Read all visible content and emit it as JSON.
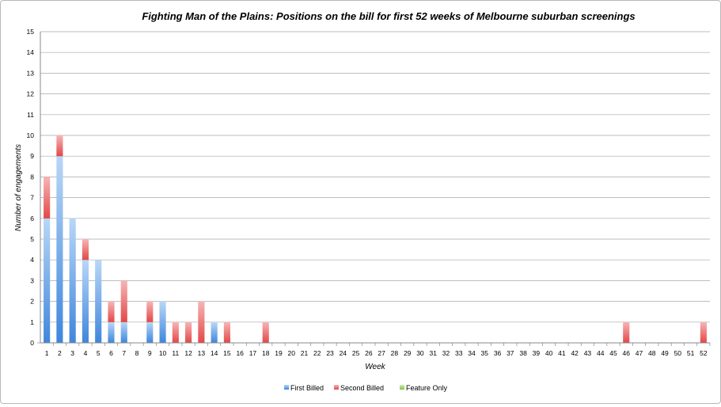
{
  "chart_data": {
    "type": "bar",
    "stacked": true,
    "title": "Fighting Man of the Plains: Positions on the bill for first 52 weeks of Melbourne suburban screenings",
    "xlabel": "Week",
    "ylabel": "Number of engagements",
    "ylim": [
      0,
      15
    ],
    "yticks": [
      0,
      1,
      2,
      3,
      4,
      5,
      6,
      7,
      8,
      9,
      10,
      11,
      12,
      13,
      14,
      15
    ],
    "grid": true,
    "legend_position": "bottom",
    "categories": [
      "1",
      "2",
      "3",
      "4",
      "5",
      "6",
      "7",
      "8",
      "9",
      "10",
      "11",
      "12",
      "13",
      "14",
      "15",
      "16",
      "17",
      "18",
      "19",
      "20",
      "21",
      "22",
      "23",
      "24",
      "25",
      "26",
      "27",
      "28",
      "29",
      "30",
      "31",
      "32",
      "33",
      "34",
      "35",
      "36",
      "37",
      "38",
      "39",
      "40",
      "41",
      "42",
      "43",
      "44",
      "45",
      "46",
      "47",
      "48",
      "49",
      "50",
      "51",
      "52"
    ],
    "series": [
      {
        "name": "First Billed",
        "color": "#4a90e2",
        "values": [
          6,
          9,
          6,
          4,
          4,
          1,
          1,
          0,
          1,
          2,
          0,
          0,
          0,
          1,
          0,
          0,
          0,
          0,
          0,
          0,
          0,
          0,
          0,
          0,
          0,
          0,
          0,
          0,
          0,
          0,
          0,
          0,
          0,
          0,
          0,
          0,
          0,
          0,
          0,
          0,
          0,
          0,
          0,
          0,
          0,
          0,
          0,
          0,
          0,
          0,
          0,
          0
        ]
      },
      {
        "name": "Second Billed",
        "color": "#e85a5a",
        "values": [
          2,
          1,
          0,
          1,
          0,
          1,
          2,
          0,
          1,
          0,
          1,
          1,
          2,
          0,
          1,
          0,
          0,
          1,
          0,
          0,
          0,
          0,
          0,
          0,
          0,
          0,
          0,
          0,
          0,
          0,
          0,
          0,
          0,
          0,
          0,
          0,
          0,
          0,
          0,
          0,
          0,
          0,
          0,
          0,
          0,
          1,
          0,
          0,
          0,
          0,
          0,
          1
        ]
      },
      {
        "name": "Feature Only",
        "color": "#9acd52",
        "values": [
          0,
          0,
          0,
          0,
          0,
          0,
          0,
          0,
          0,
          0,
          0,
          0,
          0,
          0,
          0,
          0,
          0,
          0,
          0,
          0,
          0,
          0,
          0,
          0,
          0,
          0,
          0,
          0,
          0,
          0,
          0,
          0,
          0,
          0,
          0,
          0,
          0,
          0,
          0,
          0,
          0,
          0,
          0,
          0,
          0,
          0,
          0,
          0,
          0,
          0,
          0,
          0
        ]
      }
    ]
  }
}
